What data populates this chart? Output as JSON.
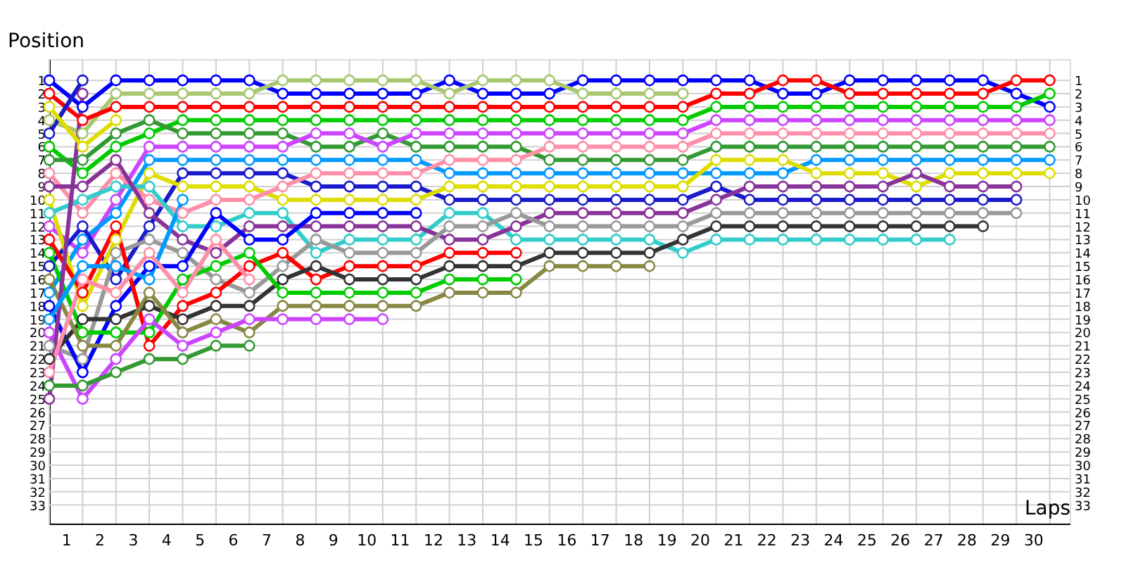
{
  "chart_data": {
    "type": "line",
    "xlabel": "Laps",
    "ylabel": "Position",
    "marker": "circle",
    "line_style": "solid",
    "grid": true,
    "legend": false,
    "x": [
      0,
      1,
      2,
      3,
      4,
      5,
      6,
      7,
      8,
      9,
      10,
      11,
      12,
      13,
      14,
      15,
      16,
      17,
      18,
      19,
      20,
      21,
      22,
      23,
      24,
      25,
      26,
      27,
      28,
      29,
      30
    ],
    "xlim": [
      0,
      30.6
    ],
    "xticks": [
      {
        "value": 0,
        "label": null
      },
      {
        "value": 0.5,
        "label": "1"
      },
      {
        "value": 1,
        "label": null
      },
      {
        "value": 1.5,
        "label": "2"
      },
      {
        "value": 2,
        "label": null
      },
      {
        "value": 2.5,
        "label": "3"
      },
      {
        "value": 3,
        "label": null
      },
      {
        "value": 3.5,
        "label": "4"
      },
      {
        "value": 4,
        "label": null
      },
      {
        "value": 4.5,
        "label": "5"
      },
      {
        "value": 5,
        "label": null
      },
      {
        "value": 5.5,
        "label": "6"
      },
      {
        "value": 6,
        "label": null
      },
      {
        "value": 6.5,
        "label": "7"
      },
      {
        "value": 7,
        "label": null
      },
      {
        "value": 7.5,
        "label": "8"
      },
      {
        "value": 8,
        "label": null
      },
      {
        "value": 8.5,
        "label": "9"
      },
      {
        "value": 9,
        "label": null
      },
      {
        "value": 9.5,
        "label": "10"
      },
      {
        "value": 10,
        "label": null
      },
      {
        "value": 10.5,
        "label": "11"
      },
      {
        "value": 11,
        "label": null
      },
      {
        "value": 11.5,
        "label": "12"
      },
      {
        "value": 12,
        "label": null
      },
      {
        "value": 12.5,
        "label": "13"
      },
      {
        "value": 13,
        "label": null
      },
      {
        "value": 13.5,
        "label": "14"
      },
      {
        "value": 14,
        "label": null
      },
      {
        "value": 14.5,
        "label": "15"
      },
      {
        "value": 15,
        "label": null
      },
      {
        "value": 15.5,
        "label": "16"
      },
      {
        "value": 16,
        "label": null
      },
      {
        "value": 16.5,
        "label": "17"
      },
      {
        "value": 17,
        "label": null
      },
      {
        "value": 17.5,
        "label": "18"
      },
      {
        "value": 18,
        "label": null
      },
      {
        "value": 18.5,
        "label": "19"
      },
      {
        "value": 19,
        "label": null
      },
      {
        "value": 19.5,
        "label": "20"
      },
      {
        "value": 20,
        "label": null
      },
      {
        "value": 20.5,
        "label": "21"
      },
      {
        "value": 21,
        "label": null
      },
      {
        "value": 21.5,
        "label": "22"
      },
      {
        "value": 22,
        "label": null
      },
      {
        "value": 22.5,
        "label": "23"
      },
      {
        "value": 23,
        "label": null
      },
      {
        "value": 23.5,
        "label": "24"
      },
      {
        "value": 24,
        "label": null
      },
      {
        "value": 24.5,
        "label": "25"
      },
      {
        "value": 25,
        "label": null
      },
      {
        "value": 25.5,
        "label": "26"
      },
      {
        "value": 26,
        "label": null
      },
      {
        "value": 26.5,
        "label": "27"
      },
      {
        "value": 27,
        "label": null
      },
      {
        "value": 27.5,
        "label": "28"
      },
      {
        "value": 28,
        "label": null
      },
      {
        "value": 28.5,
        "label": "29"
      },
      {
        "value": 29,
        "label": null
      },
      {
        "value": 29.5,
        "label": "30"
      },
      {
        "value": 30,
        "label": null
      }
    ],
    "ylim": [
      34.4,
      -0.6
    ],
    "yticks": [
      1,
      2,
      3,
      4,
      5,
      6,
      7,
      8,
      9,
      10,
      11,
      12,
      13,
      14,
      15,
      16,
      17,
      18,
      19,
      20,
      21,
      22,
      23,
      24,
      25,
      26,
      27,
      28,
      29,
      30,
      31,
      32,
      33
    ],
    "y2lim": [
      34.4,
      -0.6
    ],
    "y2ticks": [
      1,
      2,
      3,
      4,
      5,
      6,
      7,
      8,
      9,
      10,
      11,
      12,
      13,
      14,
      15,
      16,
      17,
      18,
      19,
      20,
      21,
      22,
      23,
      24,
      25,
      26,
      27,
      28,
      29,
      30,
      31,
      32,
      33
    ],
    "series": [
      {
        "color": "#0000ff",
        "values": [
          1,
          3,
          1,
          1,
          1,
          1,
          1,
          2,
          2,
          2,
          2,
          2,
          1,
          2,
          2,
          2,
          1,
          1,
          1,
          1,
          1,
          1,
          2,
          2,
          1,
          1,
          1,
          1,
          1,
          2,
          3
        ]
      },
      {
        "color": "#a8c870",
        "values": [
          4,
          5,
          2,
          2,
          2,
          2,
          2,
          1,
          1,
          1,
          1,
          1,
          2,
          1,
          1,
          1,
          2,
          2,
          2,
          2,
          null,
          null,
          null,
          null,
          null,
          null,
          null,
          null,
          null,
          null,
          null
        ]
      },
      {
        "color": "#ff0000",
        "values": [
          2,
          4,
          3,
          3,
          3,
          3,
          3,
          3,
          3,
          3,
          3,
          3,
          3,
          3,
          3,
          3,
          3,
          3,
          3,
          3,
          2,
          2,
          1,
          1,
          2,
          2,
          2,
          2,
          2,
          1,
          1
        ]
      },
      {
        "color": "#00cc00",
        "values": [
          6,
          8,
          6,
          5,
          4,
          4,
          4,
          4,
          4,
          4,
          4,
          4,
          4,
          4,
          4,
          4,
          4,
          4,
          4,
          4,
          3,
          3,
          3,
          3,
          3,
          3,
          3,
          3,
          3,
          3,
          2
        ]
      },
      {
        "color": "#339933",
        "values": [
          7,
          7,
          5,
          4,
          5,
          5,
          5,
          5,
          6,
          6,
          5,
          6,
          6,
          6,
          6,
          7,
          7,
          7,
          7,
          7,
          6,
          6,
          6,
          6,
          6,
          6,
          6,
          6,
          6,
          6,
          6
        ]
      },
      {
        "color": "#cc44ff",
        "values": [
          12,
          14,
          10,
          6,
          6,
          6,
          6,
          6,
          5,
          5,
          6,
          5,
          5,
          5,
          5,
          5,
          5,
          5,
          5,
          5,
          4,
          4,
          4,
          4,
          4,
          4,
          4,
          4,
          4,
          4,
          4
        ]
      },
      {
        "color": "#0099ff",
        "values": [
          17,
          13,
          11,
          7,
          7,
          7,
          7,
          7,
          7,
          7,
          7,
          7,
          8,
          8,
          8,
          8,
          8,
          8,
          8,
          8,
          8,
          8,
          8,
          7,
          7,
          7,
          7,
          7,
          7,
          7,
          7
        ]
      },
      {
        "color": "#1a1acc",
        "values": [
          15,
          12,
          16,
          12,
          8,
          8,
          8,
          8,
          9,
          9,
          9,
          9,
          10,
          10,
          10,
          10,
          10,
          10,
          10,
          10,
          9,
          10,
          10,
          10,
          10,
          10,
          10,
          10,
          10,
          10,
          null
        ]
      },
      {
        "color": "#dddd00",
        "values": [
          10,
          18,
          13,
          8,
          9,
          9,
          9,
          10,
          10,
          10,
          10,
          10,
          9,
          9,
          9,
          9,
          9,
          9,
          9,
          9,
          7,
          7,
          7,
          8,
          8,
          8,
          9,
          8,
          8,
          8,
          8
        ]
      },
      {
        "color": "#ff8fa8",
        "values": [
          8,
          11,
          8,
          10,
          11,
          10,
          10,
          9,
          8,
          8,
          8,
          8,
          7,
          7,
          7,
          6,
          6,
          6,
          6,
          6,
          5,
          5,
          5,
          5,
          5,
          5,
          5,
          5,
          5,
          5,
          5
        ]
      },
      {
        "color": "#33cccc",
        "values": [
          11,
          10,
          9,
          9,
          12,
          12,
          11,
          11,
          14,
          13,
          13,
          13,
          11,
          11,
          13,
          13,
          13,
          13,
          13,
          14,
          13,
          13,
          13,
          13,
          13,
          13,
          13,
          13,
          null,
          null,
          null
        ]
      },
      {
        "color": "#883399",
        "values": [
          9,
          9,
          7,
          11,
          13,
          14,
          12,
          12,
          12,
          12,
          12,
          12,
          13,
          13,
          12,
          11,
          11,
          11,
          11,
          11,
          10,
          9,
          9,
          9,
          9,
          9,
          8,
          9,
          9,
          9,
          null
        ]
      },
      {
        "color": "#999999",
        "values": [
          21,
          22,
          14,
          13,
          14,
          16,
          17,
          15,
          13,
          14,
          14,
          14,
          12,
          12,
          11,
          12,
          12,
          12,
          12,
          12,
          11,
          11,
          11,
          11,
          11,
          11,
          11,
          11,
          11,
          11,
          null
        ]
      },
      {
        "color": "#0000ff",
        "values": [
          18,
          23,
          18,
          15,
          15,
          11,
          13,
          13,
          11,
          11,
          11,
          11,
          null,
          null,
          null,
          null,
          null,
          null,
          null,
          null,
          null,
          null,
          null,
          null,
          null,
          null,
          null,
          null,
          null,
          null,
          null
        ]
      },
      {
        "color": "#ff0000",
        "values": [
          13,
          17,
          12,
          21,
          18,
          17,
          15,
          14,
          16,
          15,
          15,
          15,
          14,
          14,
          14,
          null,
          null,
          null,
          null,
          null,
          null,
          null,
          null,
          null,
          null,
          null,
          null,
          null,
          null,
          null,
          null
        ]
      },
      {
        "color": "#333333",
        "values": [
          22,
          19,
          19,
          18,
          19,
          18,
          18,
          16,
          15,
          16,
          16,
          16,
          15,
          15,
          15,
          14,
          14,
          14,
          14,
          13,
          12,
          12,
          12,
          12,
          12,
          12,
          12,
          12,
          12,
          null,
          null
        ]
      },
      {
        "color": "#00cc00",
        "values": [
          14,
          20,
          20,
          20,
          16,
          15,
          14,
          17,
          17,
          17,
          17,
          17,
          16,
          16,
          16,
          null,
          null,
          null,
          null,
          null,
          null,
          null,
          null,
          null,
          null,
          null,
          null,
          null,
          null,
          null,
          null
        ]
      },
      {
        "color": "#888844",
        "values": [
          16,
          21,
          21,
          17,
          20,
          19,
          20,
          18,
          18,
          18,
          18,
          18,
          17,
          17,
          17,
          15,
          15,
          15,
          15,
          null,
          null,
          null,
          null,
          null,
          null,
          null,
          null,
          null,
          null,
          null,
          null
        ]
      },
      {
        "color": "#cc44ff",
        "values": [
          20,
          25,
          22,
          19,
          21,
          20,
          19,
          19,
          19,
          19,
          19,
          null,
          null,
          null,
          null,
          null,
          null,
          null,
          null,
          null,
          null,
          null,
          null,
          null,
          null,
          null,
          null,
          null,
          null,
          null,
          null
        ]
      },
      {
        "color": "#339933",
        "values": [
          24,
          24,
          23,
          22,
          22,
          21,
          21,
          null,
          null,
          null,
          null,
          null,
          null,
          null,
          null,
          null,
          null,
          null,
          null,
          null,
          null,
          null,
          null,
          null,
          null,
          null,
          null,
          null,
          null,
          null,
          null
        ]
      },
      {
        "color": "#1a1acc",
        "values": [
          5,
          1,
          null,
          null,
          null,
          null,
          null,
          null,
          null,
          null,
          null,
          null,
          null,
          null,
          null,
          null,
          null,
          null,
          null,
          null,
          null,
          null,
          null,
          null,
          null,
          null,
          null,
          null,
          null,
          null,
          null
        ]
      },
      {
        "color": "#883399",
        "values": [
          25,
          2,
          null,
          null,
          null,
          null,
          null,
          null,
          null,
          null,
          null,
          null,
          null,
          null,
          null,
          null,
          null,
          null,
          null,
          null,
          null,
          null,
          null,
          null,
          null,
          null,
          null,
          null,
          null,
          null,
          null
        ]
      },
      {
        "color": "#dddd00",
        "values": [
          3,
          6,
          4,
          null,
          null,
          null,
          null,
          null,
          null,
          null,
          null,
          null,
          null,
          null,
          null,
          null,
          null,
          null,
          null,
          null,
          null,
          null,
          null,
          null,
          null,
          null,
          null,
          null,
          null,
          null,
          null
        ]
      },
      {
        "color": "#0099ff",
        "values": [
          19,
          15,
          15,
          16,
          10,
          null,
          null,
          null,
          null,
          null,
          null,
          null,
          null,
          null,
          null,
          null,
          null,
          null,
          null,
          null,
          null,
          null,
          null,
          null,
          null,
          null,
          null,
          null,
          null,
          null,
          null
        ]
      },
      {
        "color": "#ff8fa8",
        "values": [
          23,
          16,
          17,
          14,
          17,
          13,
          16,
          null,
          null,
          null,
          null,
          null,
          null,
          null,
          null,
          null,
          null,
          null,
          null,
          null,
          null,
          null,
          null,
          null,
          null,
          null,
          null,
          null,
          null,
          null,
          null
        ]
      }
    ]
  }
}
